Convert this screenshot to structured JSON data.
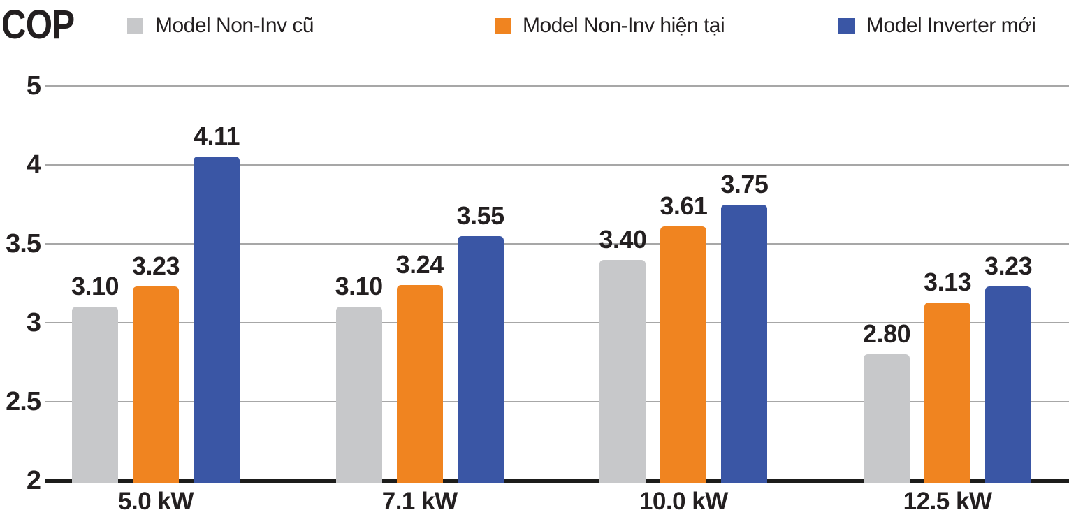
{
  "page": {
    "background": "#ffffff"
  },
  "chart_data": {
    "type": "bar",
    "title": "COP",
    "categories": [
      "5.0 kW",
      "7.1 kW",
      "10.0 kW",
      "12.5 kW"
    ],
    "series": [
      {
        "name": "Model Non-Inv cũ",
        "color": "#c7c8ca",
        "values": [
          3.1,
          3.1,
          3.4,
          2.8
        ]
      },
      {
        "name": "Model Non-Inv hiện tại",
        "color": "#f08420",
        "values": [
          3.23,
          3.24,
          3.61,
          3.13
        ]
      },
      {
        "name": "Model Inverter mới",
        "color": "#3a56a5",
        "values": [
          4.11,
          3.55,
          3.75,
          3.23
        ]
      }
    ],
    "value_label_decimals": 2,
    "y_axis": {
      "tick_values": [
        5,
        4,
        3.5,
        3,
        2.5,
        2
      ],
      "tick_labels": [
        "5",
        "4",
        "3.5",
        "3",
        "2.5",
        "2"
      ],
      "evenly_spaced_ticks": true,
      "baseline_value": 2
    },
    "legend_position": "top",
    "grid": true,
    "colors": {
      "grid": "#a7a7a7",
      "axis": "#1d1d1b",
      "text": "#231f20"
    }
  }
}
